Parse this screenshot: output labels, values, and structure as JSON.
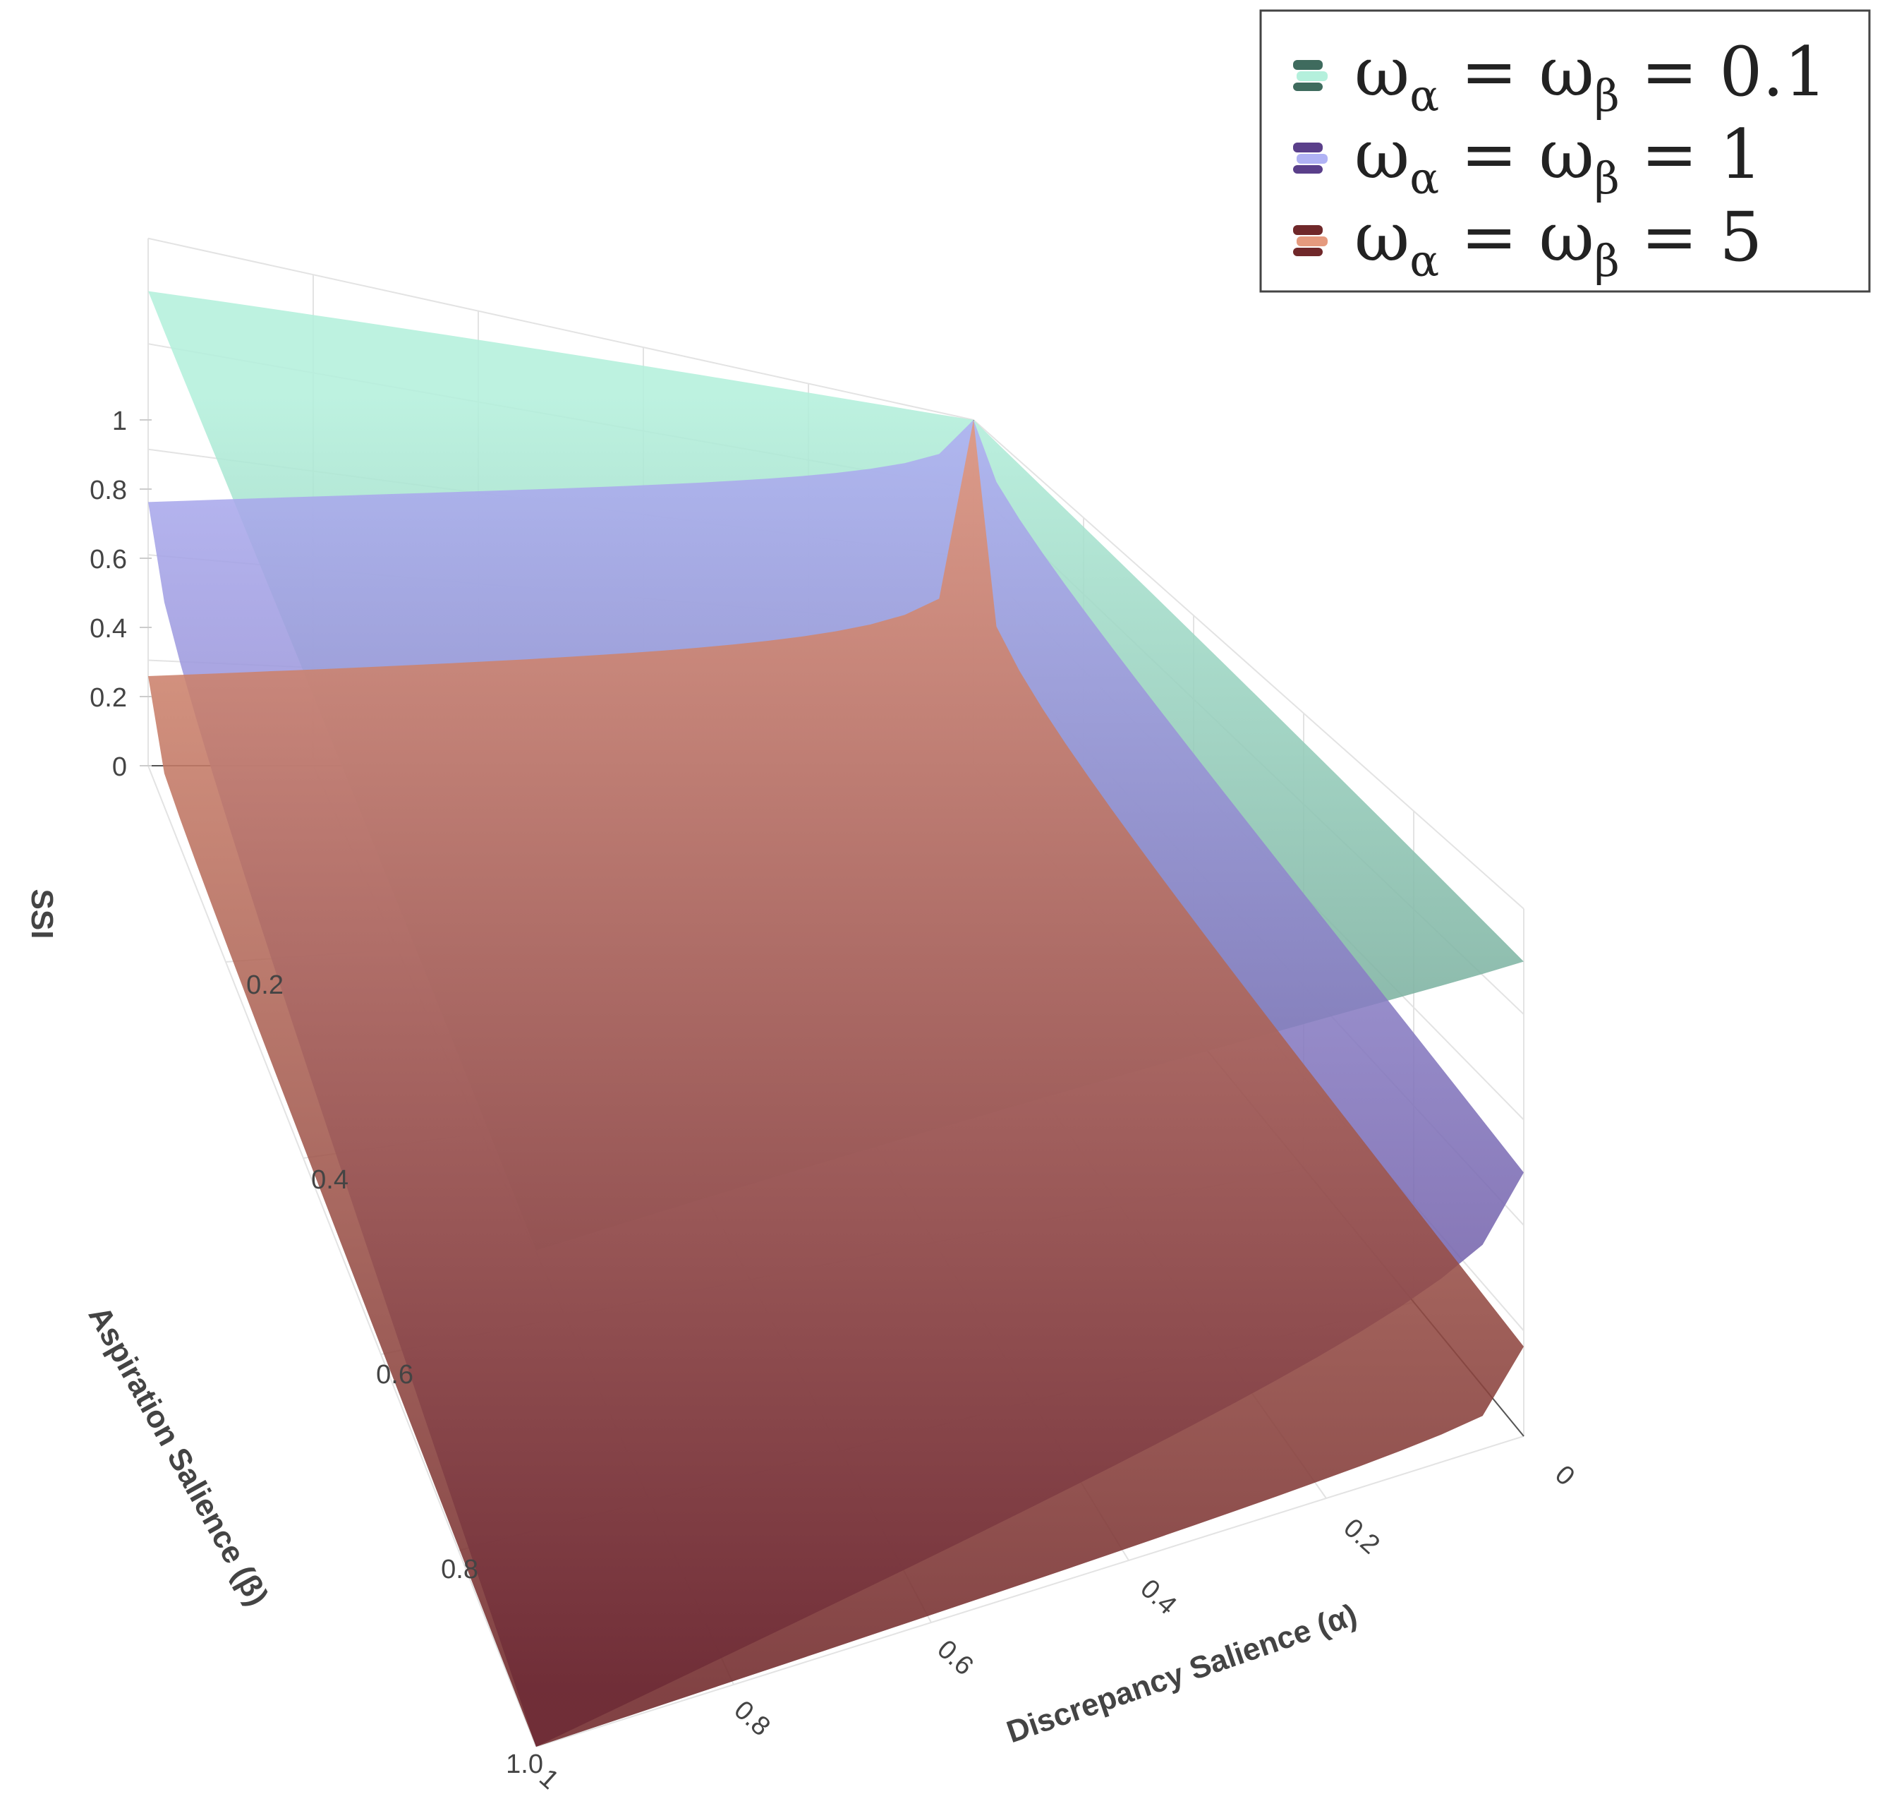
{
  "chart_data": {
    "type": "surface3d",
    "z_axis": {
      "title": "SSI",
      "range": [
        0,
        1
      ],
      "ticks": [
        "0",
        "0.2",
        "0.4",
        "0.6",
        "0.8",
        "1"
      ]
    },
    "y_axis": {
      "title": "Aspiration Salience (β)",
      "range": [
        0,
        1
      ],
      "ticks": [
        "0.2",
        "0.4",
        "0.6",
        "0.8",
        "1.0"
      ]
    },
    "x_axis": {
      "title": "Discrepancy Salience (α)",
      "range": [
        0,
        1
      ],
      "ticks": [
        "0",
        "0.2",
        "0.4",
        "0.6",
        "0.8",
        "1"
      ]
    },
    "grid": true,
    "legend_position": "top-right",
    "series": [
      {
        "legend_parts": {
          "w": "ω",
          "sub1": "α",
          "eq": "=",
          "sub2": "β",
          "value": "0.1"
        },
        "omega": 0.1,
        "corner_values": {
          "a0_b0": 1.0,
          "a1_b0": 0.9,
          "a0_b1": 0.9,
          "a1_b1": 0.7
        },
        "color_top": "#b4f0dc",
        "color_bottom": "#3f6b5e"
      },
      {
        "legend_parts": {
          "w": "ω",
          "sub1": "α",
          "eq": "=",
          "sub2": "β",
          "value": "1"
        },
        "omega": 1,
        "corner_values": {
          "a0_b0": 1.0,
          "a1_b0": 0.5,
          "a0_b1": 0.5,
          "a1_b1": 0.0
        },
        "color_top": "#b0b2f4",
        "color_bottom": "#5a3f8a"
      },
      {
        "legend_parts": {
          "w": "ω",
          "sub1": "α",
          "eq": "=",
          "sub2": "β",
          "value": "5"
        },
        "omega": 5,
        "corner_values": {
          "a0_b0": 1.0,
          "a1_b0": 0.17,
          "a0_b1": 0.17,
          "a1_b1": 0.0
        },
        "color_top": "#e59a7e",
        "color_bottom": "#70282a"
      }
    ]
  }
}
